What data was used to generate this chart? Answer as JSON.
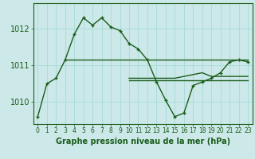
{
  "xlabel": "Graphe pression niveau de la mer (hPa)",
  "background_color": "#cce8e8",
  "grid_color": "#aadddd",
  "line_color": "#1a5c1a",
  "hours": [
    0,
    1,
    2,
    3,
    4,
    5,
    6,
    7,
    8,
    9,
    10,
    11,
    12,
    13,
    14,
    15,
    16,
    17,
    18,
    19,
    20,
    21,
    22,
    23
  ],
  "series1": [
    1009.6,
    1010.5,
    1010.65,
    1011.15,
    1011.85,
    1012.3,
    1012.1,
    1012.3,
    1012.05,
    1011.95,
    1011.6,
    1011.45,
    1011.15,
    1010.55,
    1010.05,
    1009.6,
    1009.7,
    1010.45,
    1010.55,
    1010.65,
    1010.8,
    1011.1,
    1011.15,
    1011.1
  ],
  "series2": [
    null,
    null,
    null,
    1011.15,
    1011.15,
    1011.15,
    1011.15,
    1011.15,
    1011.15,
    1011.15,
    1011.15,
    1011.15,
    1011.15,
    1011.15,
    1011.15,
    1011.15,
    1011.15,
    1011.15,
    1011.15,
    1011.15,
    1011.15,
    1011.15,
    1011.15,
    1011.15
  ],
  "series3": [
    null,
    null,
    null,
    null,
    null,
    null,
    null,
    null,
    null,
    null,
    1010.65,
    1010.65,
    1010.65,
    1010.65,
    1010.65,
    1010.65,
    1010.7,
    1010.75,
    1010.8,
    1010.7,
    1010.7,
    1010.7,
    1010.7,
    1010.7
  ],
  "series4": [
    null,
    null,
    null,
    null,
    null,
    null,
    null,
    null,
    null,
    null,
    1010.6,
    1010.6,
    1010.6,
    1010.6,
    1010.6,
    1010.6,
    1010.6,
    1010.6,
    1010.6,
    1010.6,
    1010.6,
    1010.6,
    1010.6,
    1010.6
  ],
  "ylim_min": 1009.4,
  "ylim_max": 1012.7,
  "yticks": [
    1010,
    1011,
    1012
  ],
  "text_color": "#1a5c1a",
  "font_size_xlabel": 7,
  "font_size_yticks": 7,
  "font_size_xticks": 5.5
}
